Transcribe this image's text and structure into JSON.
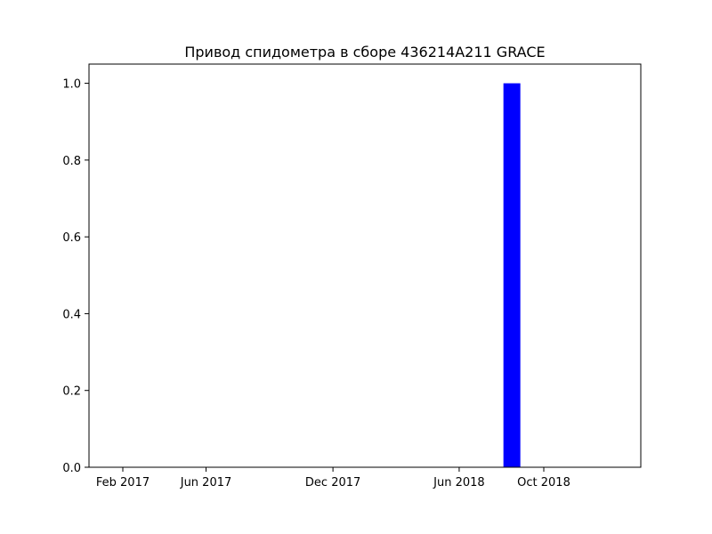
{
  "chart_data": {
    "type": "bar",
    "title": "Привод спидометра в сборе 436214A211 GRACE",
    "xlabel": "",
    "ylabel": "",
    "x_tick_labels": [
      "Feb 2017",
      "Jun 2017",
      "Dec 2017",
      "Jun 2018",
      "Oct 2018"
    ],
    "y_tick_labels": [
      "0.0",
      "0.2",
      "0.4",
      "0.6",
      "0.8",
      "1.0"
    ],
    "categories": [
      "Aug 2018"
    ],
    "values": [
      1
    ],
    "ylim": [
      0,
      1.05
    ],
    "bar_color": "#0000ff",
    "grid": false
  }
}
